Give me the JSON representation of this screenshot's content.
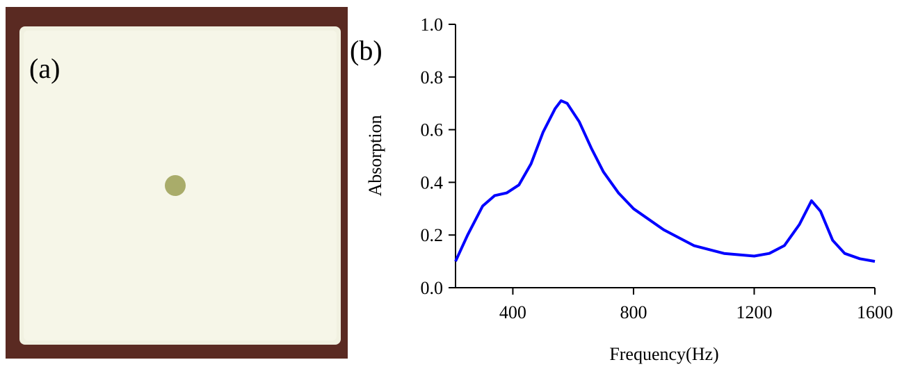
{
  "panel_a": {
    "label": "(a)"
  },
  "chart_data": {
    "type": "line",
    "annotation": "(b)",
    "xlabel": "Frequency(Hz)",
    "ylabel": "Absorption",
    "xlim": [
      210,
      1600
    ],
    "xticks": [
      400,
      800,
      1200,
      1600
    ],
    "ylim": [
      0,
      1
    ],
    "yticks": [
      {
        "value": 0,
        "label": "0.0"
      },
      {
        "value": 0.2,
        "label": "0.2"
      },
      {
        "value": 0.4,
        "label": "0.4"
      },
      {
        "value": 0.6,
        "label": "0.6"
      },
      {
        "value": 0.8,
        "label": "0.8"
      },
      {
        "value": 1,
        "label": "1.0"
      }
    ],
    "x": [
      210,
      250,
      300,
      340,
      380,
      420,
      460,
      500,
      540,
      560,
      580,
      620,
      660,
      700,
      750,
      800,
      900,
      1000,
      1100,
      1200,
      1250,
      1300,
      1350,
      1390,
      1420,
      1460,
      1500,
      1550,
      1600
    ],
    "series": [
      {
        "color": "#0000ff",
        "values": [
          0.1,
          0.2,
          0.31,
          0.35,
          0.36,
          0.39,
          0.47,
          0.59,
          0.68,
          0.71,
          0.7,
          0.63,
          0.53,
          0.44,
          0.36,
          0.3,
          0.22,
          0.16,
          0.13,
          0.12,
          0.13,
          0.16,
          0.24,
          0.33,
          0.29,
          0.18,
          0.13,
          0.11,
          0.1
        ]
      }
    ]
  }
}
